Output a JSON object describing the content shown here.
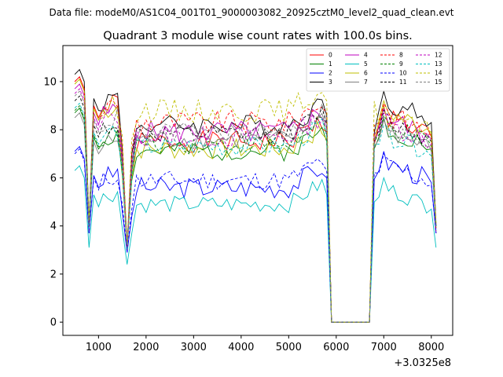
{
  "suptitle": "Data file: modeM0/AS1C04_001T01_9000003082_20925cztM0_level2_quad_clean.evt",
  "chart_data": {
    "type": "line",
    "title": "Quadrant 3 module wise count rates with 100.0s bins.",
    "xlabel": "",
    "ylabel": "",
    "x_offset_label": "+3.0325e8",
    "xlim": [
      250,
      8450
    ],
    "ylim": [
      -0.55,
      11.5
    ],
    "x_ticks": [
      1000,
      2000,
      3000,
      4000,
      5000,
      6000,
      7000,
      8000
    ],
    "x_tick_labels": [
      "1000",
      "2000",
      "3000",
      "4000",
      "5000",
      "6000",
      "7000",
      "8000"
    ],
    "y_ticks": [
      0,
      2,
      4,
      6,
      8,
      10
    ],
    "y_tick_labels": [
      "0",
      "2",
      "4",
      "6",
      "8",
      "10"
    ],
    "grid": false,
    "legend_position": "top-right",
    "legend_columns": 4,
    "series": [
      {
        "name": "0",
        "color": "#ff0000",
        "dash": "solid",
        "base": 7.5,
        "amp": 0.45,
        "p_pre": 10.0,
        "p_post": 9.0,
        "lo": 3.7,
        "lo2": 3.0,
        "seed": 1
      },
      {
        "name": "1",
        "color": "#008000",
        "dash": "solid",
        "base": 7.1,
        "amp": 0.4,
        "p_pre": 8.7,
        "p_post": 8.5,
        "lo": 4.0,
        "lo2": 3.2,
        "seed": 2
      },
      {
        "name": "2",
        "color": "#0000ff",
        "dash": "solid",
        "base": 5.6,
        "amp": 0.45,
        "p_pre": 7.1,
        "p_post": 7.1,
        "lo": 3.7,
        "lo2": 2.9,
        "seed": 3
      },
      {
        "name": "3",
        "color": "#000000",
        "dash": "solid",
        "base": 8.2,
        "amp": 0.45,
        "p_pre": 10.3,
        "p_post": 9.6,
        "lo": 4.1,
        "lo2": 3.2,
        "seed": 4
      },
      {
        "name": "4",
        "color": "#bf00bf",
        "dash": "solid",
        "base": 7.9,
        "amp": 0.5,
        "p_pre": 9.7,
        "p_post": 8.9,
        "lo": 4.0,
        "lo2": 3.1,
        "seed": 5
      },
      {
        "name": "5",
        "color": "#00bfbf",
        "dash": "solid",
        "base": 4.9,
        "amp": 0.35,
        "p_pre": 6.3,
        "p_post": 6.0,
        "lo": 3.1,
        "lo2": 2.4,
        "seed": 6
      },
      {
        "name": "6",
        "color": "#bfbf00",
        "dash": "solid",
        "base": 7.2,
        "amp": 0.45,
        "p_pre": 9.9,
        "p_post": 9.2,
        "lo": 3.9,
        "lo2": 3.0,
        "seed": 7
      },
      {
        "name": "7",
        "color": "#808080",
        "dash": "solid",
        "base": 7.6,
        "amp": 0.4,
        "p_pre": 8.5,
        "p_post": 8.4,
        "lo": 3.9,
        "lo2": 3.1,
        "seed": 8
      },
      {
        "name": "8",
        "color": "#ff0000",
        "dash": "dashed",
        "base": 8.3,
        "amp": 0.5,
        "p_pre": 10.0,
        "p_post": 9.1,
        "lo": 3.8,
        "lo2": 3.0,
        "seed": 9
      },
      {
        "name": "9",
        "color": "#008000",
        "dash": "dashed",
        "base": 7.4,
        "amp": 0.4,
        "p_pre": 8.8,
        "p_post": 8.6,
        "lo": 4.0,
        "lo2": 3.1,
        "seed": 10
      },
      {
        "name": "10",
        "color": "#0000ff",
        "dash": "dashed",
        "base": 5.9,
        "amp": 0.4,
        "p_pre": 7.0,
        "p_post": 7.0,
        "lo": 3.7,
        "lo2": 2.9,
        "seed": 11
      },
      {
        "name": "11",
        "color": "#000000",
        "dash": "dashed",
        "base": 7.8,
        "amp": 0.4,
        "p_pre": 9.2,
        "p_post": 8.8,
        "lo": 4.0,
        "lo2": 3.1,
        "seed": 12
      },
      {
        "name": "12",
        "color": "#bf00bf",
        "dash": "dashed",
        "base": 7.7,
        "amp": 0.45,
        "p_pre": 9.5,
        "p_post": 8.7,
        "lo": 4.0,
        "lo2": 3.1,
        "seed": 13
      },
      {
        "name": "13",
        "color": "#00bfbf",
        "dash": "dashed",
        "base": 7.3,
        "amp": 0.4,
        "p_pre": 8.9,
        "p_post": 8.2,
        "lo": 3.9,
        "lo2": 3.0,
        "seed": 14
      },
      {
        "name": "14",
        "color": "#bfbf00",
        "dash": "dashed",
        "base": 8.8,
        "amp": 0.5,
        "p_pre": 9.9,
        "p_post": 9.0,
        "lo": 4.1,
        "lo2": 3.2,
        "seed": 15
      },
      {
        "name": "15",
        "color": "#808080",
        "dash": "dashed",
        "base": 7.9,
        "amp": 0.4,
        "p_pre": 9.4,
        "p_post": 8.5,
        "lo": 4.0,
        "lo2": 3.1,
        "seed": 16
      }
    ]
  }
}
